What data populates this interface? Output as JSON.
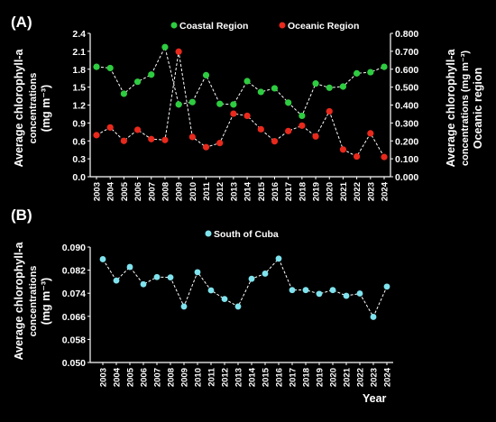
{
  "chart_data": [
    {
      "type": "line",
      "panel_label": "(A)",
      "categories": [
        "2003",
        "2004",
        "2005",
        "2006",
        "2007",
        "2008",
        "2009",
        "2010",
        "2011",
        "2012",
        "2013",
        "2014",
        "2015",
        "2016",
        "2017",
        "2018",
        "2019",
        "2020",
        "2021",
        "2022",
        "2023",
        "2024"
      ],
      "series": [
        {
          "name": "Coastal Region",
          "axis": "left",
          "color": "#2ecc40",
          "values": [
            1.84,
            1.82,
            1.39,
            1.59,
            1.71,
            2.17,
            1.21,
            1.25,
            1.7,
            1.22,
            1.21,
            1.6,
            1.42,
            1.48,
            1.24,
            1.02,
            1.56,
            1.49,
            1.51,
            1.73,
            1.75,
            1.84
          ]
        },
        {
          "name": "Oceanic Region",
          "axis": "right",
          "color": "#e8291c",
          "values": [
            0.232,
            0.275,
            0.2,
            0.262,
            0.21,
            0.205,
            0.698,
            0.222,
            0.165,
            0.188,
            0.352,
            0.34,
            0.265,
            0.198,
            0.255,
            0.285,
            0.225,
            0.365,
            0.152,
            0.113,
            0.242,
            0.11
          ]
        }
      ],
      "ylabel_left": [
        "Average chlorophyll-a",
        "concentrations",
        "(mg m⁻³)"
      ],
      "ylabel_right": [
        "Average chlorophyll-a",
        "concentrations (mg m⁻³)",
        "Oceanic region"
      ],
      "ylim_left": [
        0,
        2.4
      ],
      "yticks_left": [
        "0.0",
        "0.3",
        "0.6",
        "0.9",
        "1.2",
        "1.5",
        "1.8",
        "2.1",
        "2.4"
      ],
      "ylim_right": [
        0,
        0.8
      ],
      "yticks_right": [
        "0.000",
        "0.100",
        "0.200",
        "0.300",
        "0.400",
        "0.500",
        "0.600",
        "0.700",
        "0.800"
      ],
      "legend_position": "top",
      "grid": false
    },
    {
      "type": "line",
      "panel_label": "(B)",
      "categories": [
        "2003",
        "2004",
        "2005",
        "2006",
        "2007",
        "2008",
        "2009",
        "2010",
        "2011",
        "2012",
        "2013",
        "2014",
        "2015",
        "2016",
        "2017",
        "2018",
        "2019",
        "2020",
        "2021",
        "2022",
        "2023",
        "2024"
      ],
      "series": [
        {
          "name": "South of Cuba",
          "color": "#7fe3ee",
          "values": [
            0.0858,
            0.0784,
            0.0831,
            0.0771,
            0.0796,
            0.0795,
            0.0694,
            0.0813,
            0.075,
            0.072,
            0.0694,
            0.079,
            0.0808,
            0.086,
            0.0751,
            0.0751,
            0.0738,
            0.0751,
            0.0731,
            0.0739,
            0.0658,
            0.0763
          ]
        }
      ],
      "ylabel": [
        "Average chlorophyll-a",
        "concentrations",
        "(mg m⁻³)"
      ],
      "xlabel": "Year",
      "ylim": [
        0.05,
        0.09
      ],
      "yticks": [
        "0.050",
        "0.058",
        "0.066",
        "0.074",
        "0.082",
        "0.090"
      ],
      "legend_position": "top",
      "grid": false
    }
  ]
}
